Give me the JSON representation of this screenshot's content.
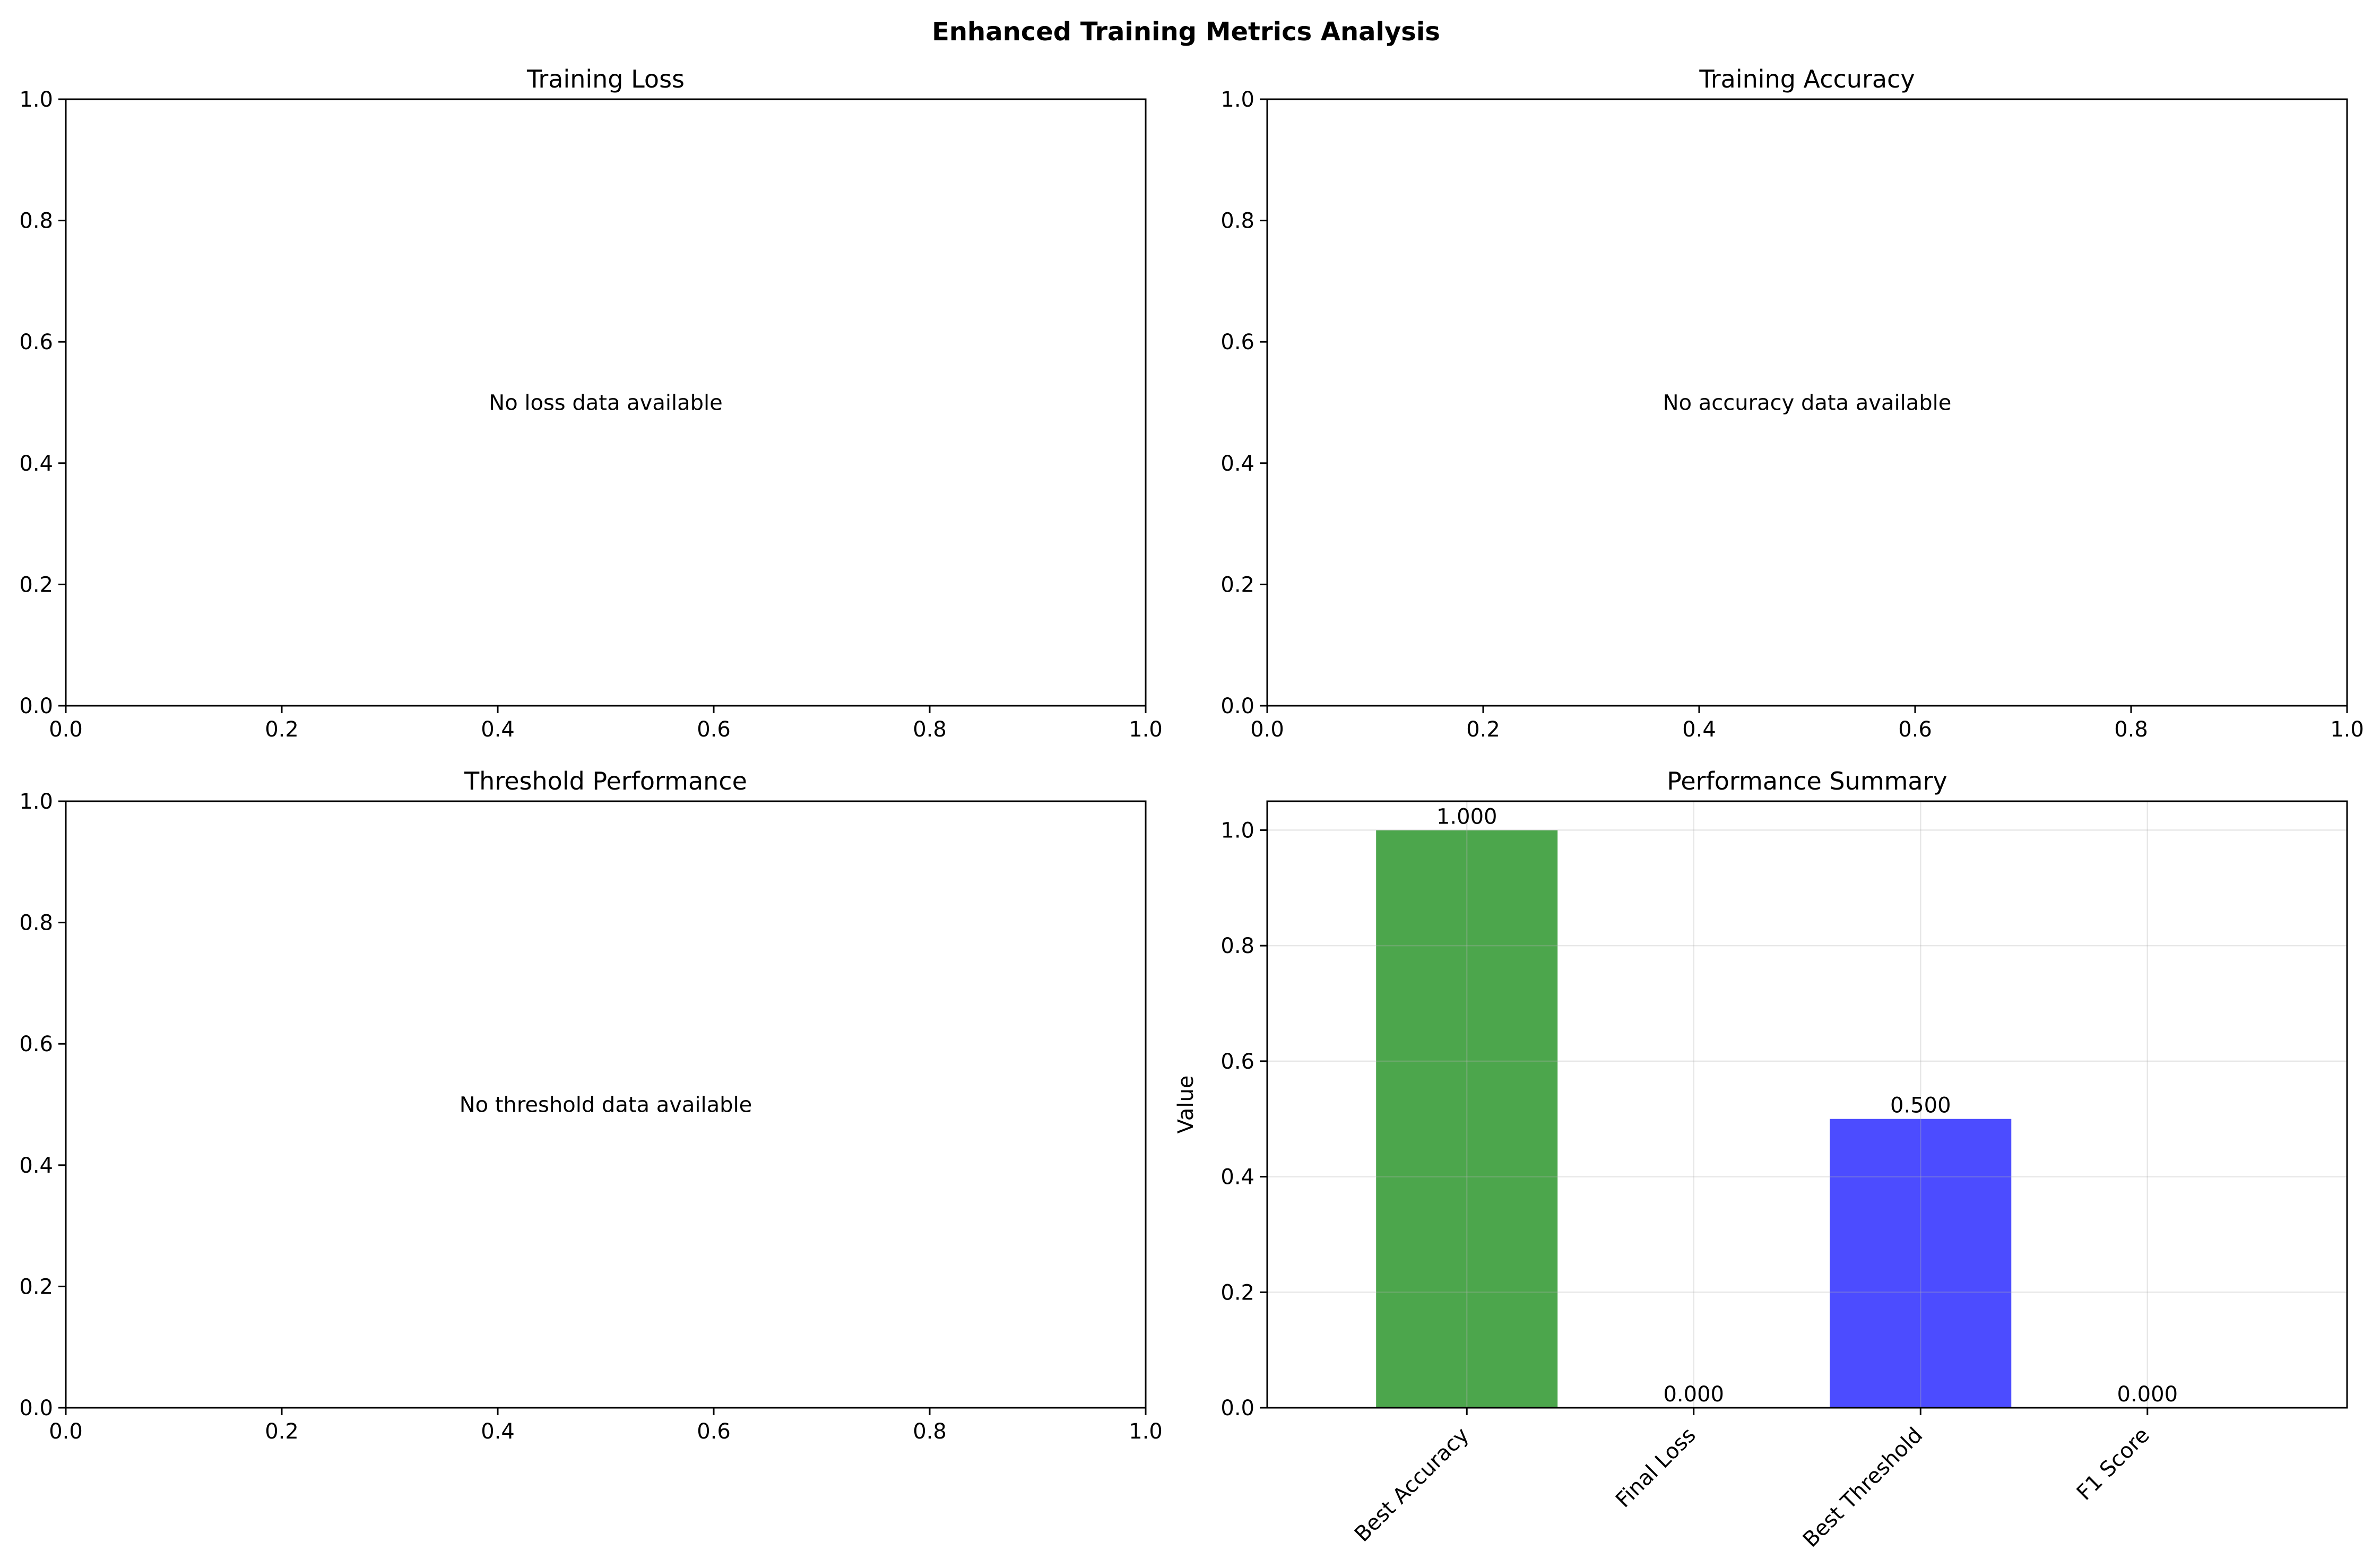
{
  "figure": {
    "title": "Enhanced Training Metrics Analysis"
  },
  "chart_data": [
    {
      "type": "line",
      "title": "Training Loss",
      "message": "No loss data available",
      "xlim": [
        0,
        1
      ],
      "ylim": [
        0,
        1
      ],
      "xticks": [
        "0.0",
        "0.2",
        "0.4",
        "0.6",
        "0.8",
        "1.0"
      ],
      "yticks": [
        "0.0",
        "0.2",
        "0.4",
        "0.6",
        "0.8",
        "1.0"
      ]
    },
    {
      "type": "line",
      "title": "Training Accuracy",
      "message": "No accuracy data available",
      "xlim": [
        0,
        1
      ],
      "ylim": [
        0,
        1
      ],
      "xticks": [
        "0.0",
        "0.2",
        "0.4",
        "0.6",
        "0.8",
        "1.0"
      ],
      "yticks": [
        "0.0",
        "0.2",
        "0.4",
        "0.6",
        "0.8",
        "1.0"
      ]
    },
    {
      "type": "line",
      "title": "Threshold Performance",
      "message": "No threshold data available",
      "xlim": [
        0,
        1
      ],
      "ylim": [
        0,
        1
      ],
      "xticks": [
        "0.0",
        "0.2",
        "0.4",
        "0.6",
        "0.8",
        "1.0"
      ],
      "yticks": [
        "0.0",
        "0.2",
        "0.4",
        "0.6",
        "0.8",
        "1.0"
      ]
    },
    {
      "type": "bar",
      "title": "Performance Summary",
      "ylabel": "Value",
      "categories": [
        "Best Accuracy",
        "Final Loss",
        "Best Threshold",
        "F1 Score"
      ],
      "values": [
        1.0,
        0.0,
        0.5,
        0.0
      ],
      "value_labels": [
        "1.000",
        "0.000",
        "0.500",
        "0.000"
      ],
      "colors": [
        "#4ca64c",
        "#ff4c4c",
        "#4c4cff",
        "#ffa64c"
      ],
      "ylim": [
        0,
        1.05
      ],
      "yticks": [
        "0.0",
        "0.2",
        "0.4",
        "0.6",
        "0.8",
        "1.0"
      ],
      "grid": true
    }
  ]
}
